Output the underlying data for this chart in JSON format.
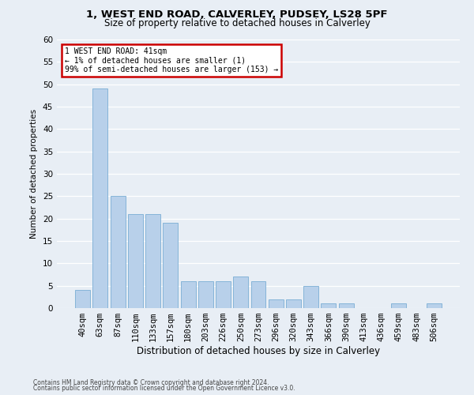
{
  "title1": "1, WEST END ROAD, CALVERLEY, PUDSEY, LS28 5PF",
  "title2": "Size of property relative to detached houses in Calverley",
  "xlabel": "Distribution of detached houses by size in Calverley",
  "ylabel": "Number of detached properties",
  "categories": [
    "40sqm",
    "63sqm",
    "87sqm",
    "110sqm",
    "133sqm",
    "157sqm",
    "180sqm",
    "203sqm",
    "226sqm",
    "250sqm",
    "273sqm",
    "296sqm",
    "320sqm",
    "343sqm",
    "366sqm",
    "390sqm",
    "413sqm",
    "436sqm",
    "459sqm",
    "483sqm",
    "506sqm"
  ],
  "values": [
    4,
    49,
    25,
    21,
    21,
    19,
    6,
    6,
    6,
    7,
    6,
    2,
    2,
    5,
    1,
    1,
    0,
    0,
    1,
    0,
    1
  ],
  "bar_color": "#b8d0ea",
  "bar_edge_color": "#7aadd4",
  "annotation_line1": "1 WEST END ROAD: 41sqm",
  "annotation_line2": "← 1% of detached houses are smaller (1)",
  "annotation_line3": "99% of semi-detached houses are larger (153) →",
  "annotation_box_color": "#ffffff",
  "annotation_box_edge": "#cc0000",
  "ylim": [
    0,
    60
  ],
  "yticks": [
    0,
    5,
    10,
    15,
    20,
    25,
    30,
    35,
    40,
    45,
    50,
    55,
    60
  ],
  "footer1": "Contains HM Land Registry data © Crown copyright and database right 2024.",
  "footer2": "Contains public sector information licensed under the Open Government Licence v3.0.",
  "bg_color": "#e8eef5",
  "plot_bg_color": "#e8eef5",
  "grid_color": "#ffffff",
  "title1_fontsize": 9.5,
  "title2_fontsize": 8.5,
  "xlabel_fontsize": 8.5,
  "ylabel_fontsize": 7.5,
  "tick_fontsize": 7.5,
  "annot_fontsize": 7.0,
  "footer_fontsize": 5.5
}
